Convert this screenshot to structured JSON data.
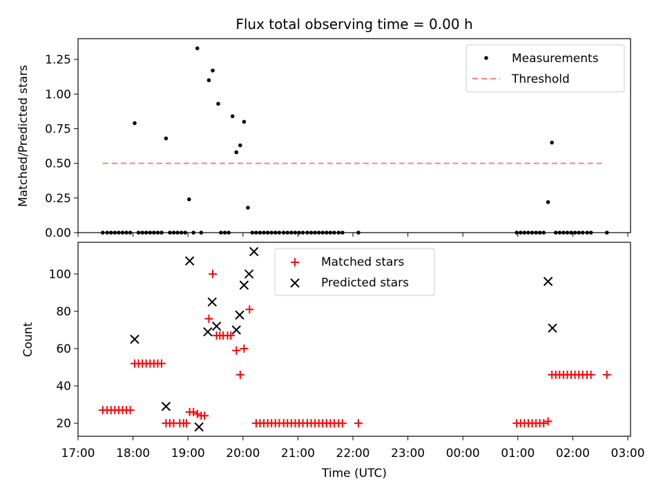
{
  "figure_title": "Flux total observing time = 0.00 h",
  "colors": {
    "measure": "#000000",
    "threshold": "#ff7f7f",
    "matched": "#ff0000",
    "predicted": "#000000"
  },
  "chart_data": [
    {
      "type": "scatter",
      "title": "Flux total observing time = 0.00 h",
      "xlabel": "",
      "ylabel": "Matched/Predicted stars",
      "xlim": [
        17.0,
        27.05
      ],
      "ylim": [
        0.0,
        1.4
      ],
      "yticks": [
        0.0,
        0.25,
        0.5,
        0.75,
        1.0,
        1.25
      ],
      "ytick_labels": [
        "0.00",
        "0.25",
        "0.50",
        "0.75",
        "1.00",
        "1.25"
      ],
      "legend": [
        "Measurements",
        "Threshold"
      ],
      "legend_loc": "upper right",
      "threshold": {
        "name": "Threshold",
        "x": [
          17.45,
          26.6
        ],
        "y": 0.5
      },
      "series": [
        {
          "name": "Measurements",
          "x": [
            17.45,
            17.53,
            17.6,
            17.67,
            17.74,
            17.81,
            17.88,
            17.95,
            18.03,
            18.1,
            18.17,
            18.24,
            18.31,
            18.38,
            18.45,
            18.52,
            18.6,
            18.67,
            18.74,
            18.81,
            18.88,
            18.95,
            19.02,
            19.1,
            19.17,
            19.24,
            19.38,
            19.45,
            19.55,
            19.6,
            19.67,
            19.74,
            19.81,
            19.88,
            19.95,
            20.02,
            20.09,
            20.17,
            20.24,
            20.31,
            20.38,
            20.45,
            20.52,
            20.59,
            20.66,
            20.74,
            20.81,
            20.88,
            20.95,
            21.02,
            21.09,
            21.17,
            21.24,
            21.31,
            21.38,
            21.45,
            21.52,
            21.59,
            21.66,
            21.74,
            21.81,
            22.1,
            24.98,
            25.05,
            25.12,
            25.19,
            25.26,
            25.33,
            25.4,
            25.47,
            25.55,
            25.62,
            25.69,
            25.76,
            25.83,
            25.9,
            25.97,
            26.04,
            26.11,
            26.18,
            26.26,
            26.33,
            26.62
          ],
          "y": [
            0.0,
            0.0,
            0.0,
            0.0,
            0.0,
            0.0,
            0.0,
            0.0,
            0.79,
            0.0,
            0.0,
            0.0,
            0.0,
            0.0,
            0.0,
            0.0,
            0.68,
            0.0,
            0.0,
            0.0,
            0.0,
            0.0,
            0.24,
            0.0,
            1.33,
            0.0,
            1.1,
            1.17,
            0.93,
            0.0,
            0.0,
            0.0,
            0.84,
            0.58,
            0.63,
            0.8,
            0.18,
            0.0,
            0.0,
            0.0,
            0.0,
            0.0,
            0.0,
            0.0,
            0.0,
            0.0,
            0.0,
            0.0,
            0.0,
            0.0,
            0.0,
            0.0,
            0.0,
            0.0,
            0.0,
            0.0,
            0.0,
            0.0,
            0.0,
            0.0,
            0.0,
            0.0,
            0.0,
            0.0,
            0.0,
            0.0,
            0.0,
            0.0,
            0.0,
            0.0,
            0.22,
            0.65,
            0.0,
            0.0,
            0.0,
            0.0,
            0.0,
            0.0,
            0.0,
            0.0,
            0.0,
            0.0,
            0.0
          ]
        }
      ]
    },
    {
      "type": "scatter",
      "xlabel": "Time (UTC)",
      "ylabel": "Count",
      "xlim": [
        17.0,
        27.05
      ],
      "ylim": [
        13.0,
        117.0
      ],
      "yticks": [
        20,
        40,
        60,
        80,
        100
      ],
      "ytick_labels": [
        "20",
        "40",
        "60",
        "80",
        "100"
      ],
      "xticks": [
        17,
        18,
        19,
        20,
        21,
        22,
        23,
        24,
        25,
        26,
        27
      ],
      "xtick_labels": [
        "17:00",
        "18:00",
        "19:00",
        "20:00",
        "21:00",
        "22:00",
        "23:00",
        "00:00",
        "01:00",
        "02:00",
        "03:00"
      ],
      "legend": [
        "Matched stars",
        "Predicted stars"
      ],
      "legend_loc": "upper center",
      "series": [
        {
          "name": "Matched stars",
          "marker": "plus",
          "x": [
            17.45,
            17.53,
            17.6,
            17.67,
            17.74,
            17.81,
            17.88,
            17.95,
            18.03,
            18.1,
            18.17,
            18.24,
            18.31,
            18.38,
            18.45,
            18.52,
            18.6,
            18.67,
            18.74,
            18.85,
            18.92,
            18.97,
            19.03,
            19.1,
            19.17,
            19.24,
            19.3,
            19.38,
            19.45,
            19.52,
            19.58,
            19.64,
            19.72,
            19.78,
            19.88,
            19.95,
            20.02,
            20.12,
            20.24,
            20.31,
            20.38,
            20.45,
            20.52,
            20.59,
            20.66,
            20.74,
            20.81,
            20.88,
            20.95,
            21.02,
            21.09,
            21.17,
            21.24,
            21.31,
            21.38,
            21.45,
            21.52,
            21.59,
            21.66,
            21.74,
            21.81,
            22.1,
            24.98,
            25.05,
            25.12,
            25.19,
            25.26,
            25.33,
            25.4,
            25.47,
            25.55,
            25.62,
            25.69,
            25.76,
            25.83,
            25.9,
            25.97,
            26.04,
            26.11,
            26.18,
            26.26,
            26.33,
            26.62
          ],
          "y": [
            27,
            27,
            27,
            27,
            27,
            27,
            27,
            27,
            52,
            52,
            52,
            52,
            52,
            52,
            52,
            52,
            20,
            20,
            20,
            20,
            20,
            20,
            26,
            26,
            25,
            24,
            24,
            76,
            100,
            67,
            67,
            67,
            67,
            67,
            59,
            46,
            60,
            81,
            20,
            20,
            20,
            20,
            20,
            20,
            20,
            20,
            20,
            20,
            20,
            20,
            20,
            20,
            20,
            20,
            20,
            20,
            20,
            20,
            20,
            20,
            20,
            20,
            20,
            20,
            20,
            20,
            20,
            20,
            20,
            20,
            21,
            46,
            46,
            46,
            46,
            46,
            46,
            46,
            46,
            46,
            46,
            46,
            46
          ]
        },
        {
          "name": "Predicted stars",
          "marker": "x",
          "x": [
            18.03,
            18.6,
            19.03,
            19.2,
            19.36,
            19.44,
            19.52,
            19.88,
            19.94,
            20.02,
            20.11,
            20.2,
            25.55,
            25.63
          ],
          "y": [
            65,
            29,
            107,
            18,
            69,
            85,
            72,
            70,
            78,
            94,
            100,
            112,
            96,
            71
          ]
        }
      ]
    }
  ]
}
